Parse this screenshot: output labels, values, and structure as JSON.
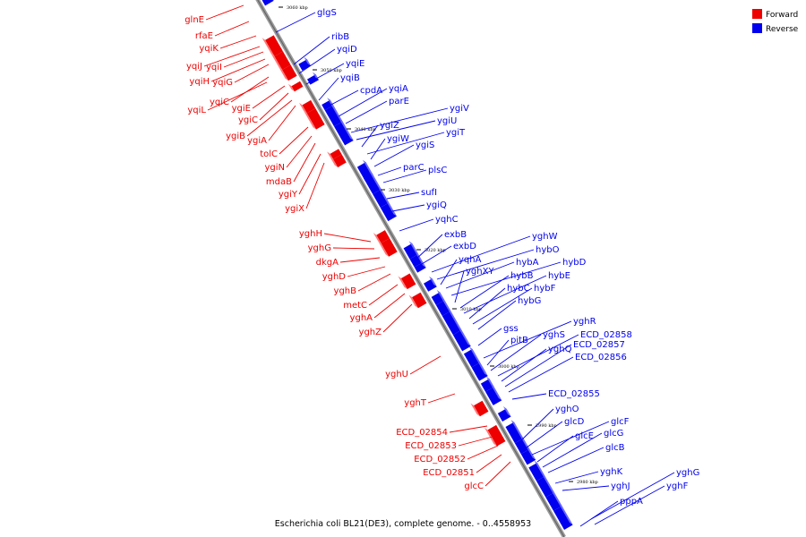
{
  "caption": "Escherichia coli BL21(DE3), complete genome. - 0..4558953",
  "colors": {
    "forward": "#ee0000",
    "reverse": "#0000ee",
    "axis": "#909090"
  },
  "legend": [
    {
      "name": "Forward",
      "color": "#ee0000"
    },
    {
      "name": "Reverse",
      "color": "#0000ee"
    }
  ],
  "ticks": [
    "3060 kbp",
    "3050 kbp",
    "3040 kbp",
    "3030 kbp",
    "3020 kbp",
    "3010 kbp",
    "3000 kbp",
    "2990 kbp",
    "2980 kbp"
  ],
  "forward_genes": [
    "glnE",
    "rfaE",
    "yqiK",
    "yqiJ",
    "yqiI",
    "yqiH",
    "yqiG",
    "yqiC",
    "yqiL",
    "ygiE",
    "ygiC",
    "ygiB",
    "ygiA",
    "tolC",
    "ygiN",
    "mdaB",
    "ygiY",
    "ygiX",
    "yghH",
    "yghG",
    "dkgA",
    "yghD",
    "yghB",
    "metC",
    "yghA",
    "yghZ",
    "yghU",
    "yghT",
    "ECD_02854",
    "ECD_02853",
    "ECD_02852",
    "ECD_02851",
    "glcC"
  ],
  "reverse_genes": [
    "glgS",
    "ribB",
    "yqiD",
    "yqiE",
    "yqiB",
    "cpdA",
    "yqiA",
    "parE",
    "ygiV",
    "ygiU",
    "ygiZ",
    "ygiT",
    "ygiW",
    "ygiS",
    "parC",
    "plsC",
    "sufI",
    "ygiQ",
    "yqhC",
    "exbB",
    "exbD",
    "yghW",
    "hybO",
    "yqhA",
    "hybA",
    "hybD",
    "yghXY",
    "hybB",
    "hybE",
    "hybC",
    "hybF",
    "hybG",
    "gss",
    "yghR",
    "pitB",
    "yghS",
    "ECD_02858",
    "yghQ",
    "ECD_02857",
    "ECD_02856",
    "ECD_02855",
    "yghO",
    "glcD",
    "glcF",
    "glcE",
    "glcG",
    "glcB",
    "yghK",
    "yghJ",
    "yghG",
    "yghF",
    "pppA"
  ]
}
